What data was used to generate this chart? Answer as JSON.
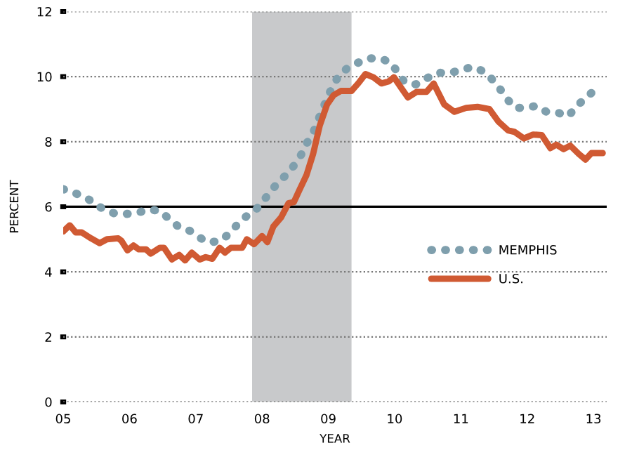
{
  "chart_data": {
    "type": "line",
    "xlabel": "YEAR",
    "ylabel": "PERCENT",
    "xlim": [
      2005,
      2013.2
    ],
    "ylim": [
      0,
      12
    ],
    "xticks": [
      {
        "value": 2005,
        "label": "05"
      },
      {
        "value": 2006,
        "label": "06"
      },
      {
        "value": 2007,
        "label": "07"
      },
      {
        "value": 2008,
        "label": "08"
      },
      {
        "value": 2009,
        "label": "09"
      },
      {
        "value": 2010,
        "label": "10"
      },
      {
        "value": 2011,
        "label": "11"
      },
      {
        "value": 2012,
        "label": "12"
      },
      {
        "value": 2013,
        "label": "13"
      }
    ],
    "yticks": [
      0,
      2,
      4,
      6,
      8,
      10,
      12
    ],
    "grid": "y",
    "legend": "center right",
    "bands": [
      {
        "axis": "x",
        "from": 2007.85,
        "to": 2009.35,
        "color": "#c8c9cb"
      }
    ],
    "ref_lines": [
      {
        "axis": "y",
        "value": 6,
        "color": "#000000",
        "line_style": "solid"
      }
    ],
    "series": [
      {
        "name": "MEMPHIS",
        "color": "#7f9fad",
        "line_style": "dotted",
        "x": [
          2005.0,
          2005.16,
          2005.33,
          2005.49,
          2005.64,
          2005.8,
          2005.96,
          2006.13,
          2006.3,
          2006.47,
          2006.6,
          2006.75,
          2006.91,
          2007.06,
          2007.19,
          2007.37,
          2007.51,
          2007.63,
          2007.76,
          2007.9,
          2008.01,
          2008.13,
          2008.24,
          2008.38,
          2008.49,
          2008.59,
          2008.67,
          2008.77,
          2008.84,
          2008.91,
          2008.98,
          2009.06,
          2009.15,
          2009.28,
          2009.43,
          2009.59,
          2009.78,
          2009.94,
          2010.05,
          2010.15,
          2010.32,
          2010.48,
          2010.64,
          2010.82,
          2011.01,
          2011.17,
          2011.32,
          2011.46,
          2011.58,
          2011.69,
          2011.81,
          2011.97,
          2012.14,
          2012.29,
          2012.48,
          2012.62,
          2012.72,
          2012.86,
          2013.0
        ],
        "values": [
          6.54,
          6.43,
          6.3,
          6.08,
          5.88,
          5.78,
          5.78,
          5.82,
          5.92,
          5.86,
          5.62,
          5.37,
          5.26,
          5.05,
          4.9,
          4.95,
          5.18,
          5.46,
          5.7,
          5.89,
          6.17,
          6.45,
          6.76,
          7.0,
          7.29,
          7.6,
          7.94,
          8.27,
          8.64,
          8.97,
          9.33,
          9.68,
          10.0,
          10.25,
          10.41,
          10.56,
          10.56,
          10.44,
          10.12,
          9.83,
          9.76,
          9.94,
          10.12,
          10.11,
          10.2,
          10.3,
          10.18,
          9.94,
          9.65,
          9.33,
          9.04,
          9.04,
          9.1,
          8.92,
          8.88,
          8.78,
          9.03,
          9.31,
          9.55
        ]
      },
      {
        "name": "U.S.",
        "color": "#d05a33",
        "line_style": "solid",
        "x": [
          2005.0,
          2005.1,
          2005.19,
          2005.28,
          2005.42,
          2005.55,
          2005.66,
          2005.83,
          2005.88,
          2005.97,
          2006.06,
          2006.14,
          2006.25,
          2006.32,
          2006.46,
          2006.52,
          2006.64,
          2006.75,
          2006.84,
          2006.94,
          2007.06,
          2007.15,
          2007.25,
          2007.36,
          2007.44,
          2007.53,
          2007.7,
          2007.77,
          2007.88,
          2008.0,
          2008.08,
          2008.17,
          2008.29,
          2008.4,
          2008.48,
          2008.57,
          2008.67,
          2008.77,
          2008.87,
          2008.98,
          2009.08,
          2009.19,
          2009.35,
          2009.45,
          2009.56,
          2009.68,
          2009.8,
          2009.91,
          2009.99,
          2010.1,
          2010.2,
          2010.33,
          2010.48,
          2010.59,
          2010.66,
          2010.75,
          2010.9,
          2011.08,
          2011.25,
          2011.43,
          2011.57,
          2011.71,
          2011.81,
          2011.95,
          2012.09,
          2012.22,
          2012.35,
          2012.44,
          2012.55,
          2012.65,
          2012.78,
          2012.88,
          2012.97,
          2013.14
        ],
        "values": [
          5.24,
          5.43,
          5.21,
          5.21,
          5.03,
          4.88,
          5.0,
          5.03,
          4.95,
          4.66,
          4.81,
          4.69,
          4.69,
          4.56,
          4.74,
          4.74,
          4.38,
          4.52,
          4.35,
          4.59,
          4.38,
          4.45,
          4.4,
          4.74,
          4.59,
          4.74,
          4.74,
          5.0,
          4.85,
          5.1,
          4.91,
          5.39,
          5.68,
          6.11,
          6.14,
          6.54,
          6.97,
          7.62,
          8.49,
          9.14,
          9.43,
          9.56,
          9.56,
          9.79,
          10.08,
          9.98,
          9.79,
          9.85,
          9.98,
          9.65,
          9.36,
          9.53,
          9.53,
          9.79,
          9.5,
          9.14,
          8.92,
          9.04,
          9.07,
          9.0,
          8.61,
          8.35,
          8.3,
          8.1,
          8.22,
          8.2,
          7.8,
          7.91,
          7.77,
          7.88,
          7.62,
          7.45,
          7.65,
          7.65
        ]
      }
    ]
  }
}
